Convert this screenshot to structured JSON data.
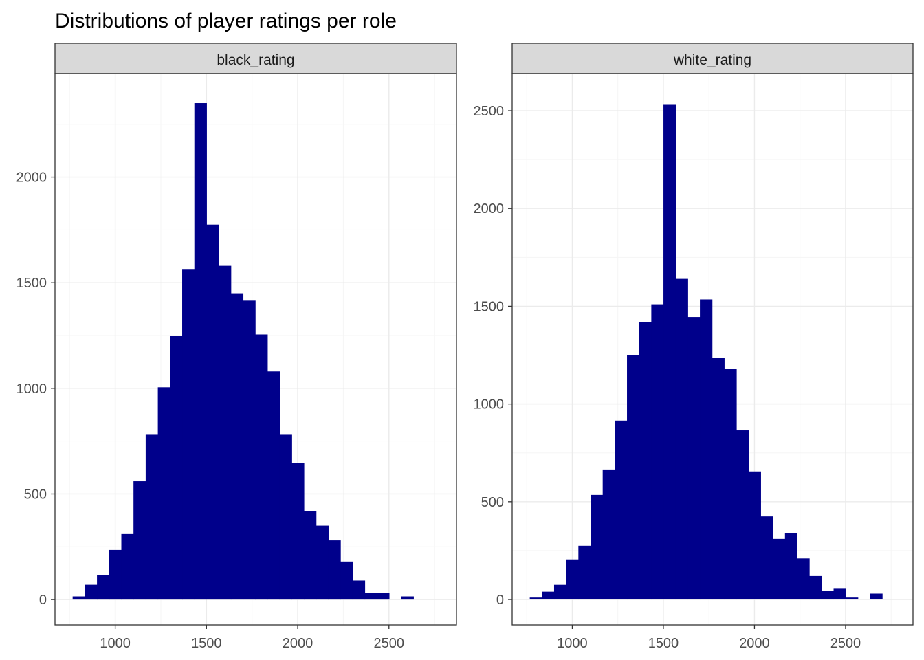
{
  "title": "Distributions of player ratings per role",
  "colors": {
    "bar": "#00008B",
    "panel_border": "#333333",
    "strip_fill": "#D9D9D9",
    "grid_major": "#EBEBEB",
    "grid_minor": "#F5F5F5"
  },
  "chart_data": [
    {
      "type": "bar",
      "panel": "black_rating",
      "xlim": [
        670,
        2870
      ],
      "ylim": [
        -120,
        2490
      ],
      "x_ticks": [
        "1000",
        "1500",
        "2000",
        "2500"
      ],
      "y_ticks": [
        "0",
        "500",
        "1000",
        "1500",
        "2000"
      ],
      "grid": true,
      "bin_width": 66.7,
      "bin_start": 766.7,
      "values": [
        15,
        70,
        115,
        235,
        310,
        560,
        780,
        1005,
        1250,
        1565,
        2350,
        1775,
        1580,
        1450,
        1415,
        1255,
        1080,
        780,
        645,
        420,
        350,
        280,
        180,
        90,
        30,
        30,
        0,
        15
      ]
    },
    {
      "type": "bar",
      "panel": "white_rating",
      "xlim": [
        670,
        2870
      ],
      "ylim": [
        -130,
        2690
      ],
      "x_ticks": [
        "1000",
        "1500",
        "2000",
        "2500"
      ],
      "y_ticks": [
        "0",
        "500",
        "1000",
        "1500",
        "2000",
        "2500"
      ],
      "grid": true,
      "bin_width": 66.7,
      "bin_start": 766.7,
      "values": [
        10,
        40,
        75,
        205,
        275,
        535,
        665,
        915,
        1250,
        1420,
        1510,
        2530,
        1640,
        1445,
        1535,
        1235,
        1180,
        865,
        655,
        425,
        310,
        340,
        210,
        120,
        45,
        55,
        10,
        0,
        30
      ]
    }
  ]
}
